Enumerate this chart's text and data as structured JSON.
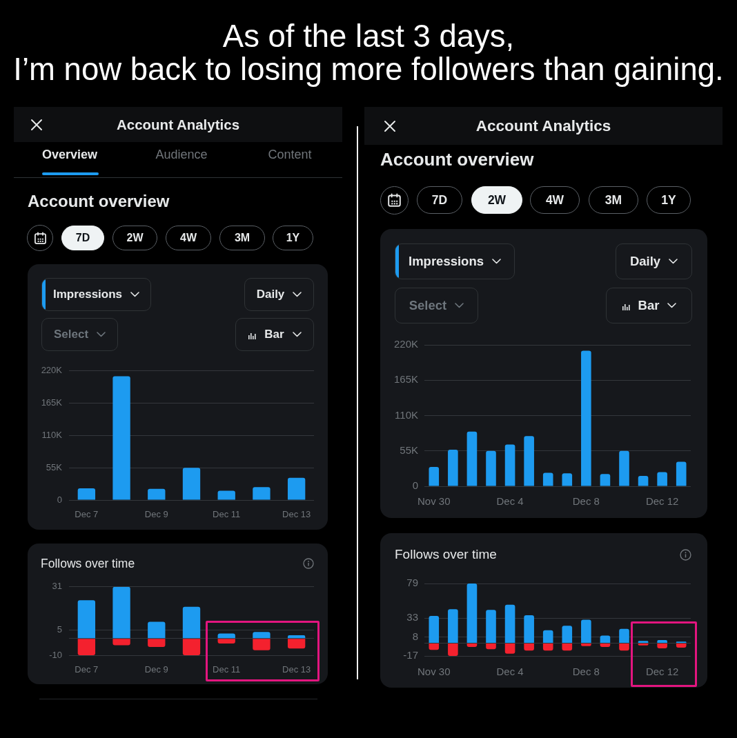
{
  "chart_data": [
    {
      "type": "other",
      "title": "As of the last 3 days,\nI’m now back to losing more followers than gaining."
    },
    {
      "type": "other",
      "title": "Account Analytics",
      "subtitle": "Account overview",
      "annotations": [
        "Overview",
        "Audience",
        "Content",
        "7D",
        "2W",
        "4W",
        "3M",
        "1Y"
      ]
    },
    {
      "type": "bar",
      "categories": [
        "Dec 7",
        null,
        "Dec 9",
        null,
        "Dec 11",
        null,
        "Dec 13"
      ],
      "values": [
        20000,
        211000,
        19000,
        55000,
        16000,
        22000,
        38000
      ],
      "color": "#1d9bf0",
      "ylim": [
        0,
        220000
      ],
      "yticks": [
        0,
        {
          "value": 55000,
          "label": "55K"
        },
        {
          "value": 110000,
          "label": "110K"
        },
        {
          "value": 165000,
          "label": "165K"
        },
        {
          "value": 220000,
          "label": "220K"
        }
      ],
      "grid": "y",
      "annotations": [
        "Impressions",
        "Daily",
        "Select",
        "Bar"
      ]
    },
    {
      "type": "bar",
      "title": "Follows over time",
      "stacked": true,
      "categories": [
        "Dec 7",
        null,
        "Dec 9",
        null,
        "Dec 11",
        null,
        "Dec 13"
      ],
      "series": [
        {
          "color": "#1d9bf0",
          "values": [
            23,
            31,
            10,
            19,
            3,
            4,
            2
          ]
        },
        {
          "color": "#f4212e",
          "values": [
            -10,
            -4,
            -5,
            -10,
            -3,
            -7,
            -6
          ]
        }
      ],
      "ylim": [
        -10,
        31
      ],
      "yticks": [
        -10,
        {
          "value": 0,
          "label": null
        },
        5,
        31
      ],
      "grid": "y"
    },
    {
      "type": "other",
      "title": "Account Analytics",
      "subtitle": "Account overview",
      "annotations": [
        "7D",
        "2W",
        "4W",
        "3M",
        "1Y"
      ]
    },
    {
      "type": "bar",
      "categories": [
        "Nov 30",
        null,
        null,
        null,
        "Dec 4",
        null,
        null,
        null,
        "Dec 8",
        null,
        null,
        null,
        "Dec 12",
        null
      ],
      "values": [
        30000,
        57000,
        85000,
        55000,
        65000,
        78000,
        21000,
        20000,
        211000,
        19000,
        55000,
        16000,
        22000,
        38000
      ],
      "color": "#1d9bf0",
      "ylim": [
        0,
        220000
      ],
      "yticks": [
        0,
        {
          "value": 55000,
          "label": "55K"
        },
        {
          "value": 110000,
          "label": "110K"
        },
        {
          "value": 165000,
          "label": "165K"
        },
        {
          "value": 220000,
          "label": "220K"
        }
      ],
      "grid": "y",
      "annotations": [
        "Impressions",
        "Daily",
        "Select",
        "Bar"
      ]
    },
    {
      "type": "bar",
      "title": "Follows over time",
      "stacked": true,
      "categories": [
        "Nov 30",
        null,
        null,
        null,
        "Dec 4",
        null,
        null,
        null,
        "Dec 8",
        null,
        null,
        null,
        "Dec 12",
        null
      ],
      "series": [
        {
          "color": "#1d9bf0",
          "values": [
            36,
            45,
            79,
            44,
            51,
            37,
            17,
            23,
            31,
            10,
            19,
            3,
            4,
            2
          ]
        },
        {
          "color": "#f4212e",
          "values": [
            -9,
            -17,
            -5,
            -8,
            -14,
            -10,
            -10,
            -10,
            -4,
            -5,
            -10,
            -3,
            -7,
            -6
          ]
        }
      ],
      "ylim": [
        -17,
        79
      ],
      "yticks": [
        -17,
        {
          "value": 0,
          "label": null
        },
        8,
        33,
        79
      ],
      "grid": "y"
    }
  ]
}
